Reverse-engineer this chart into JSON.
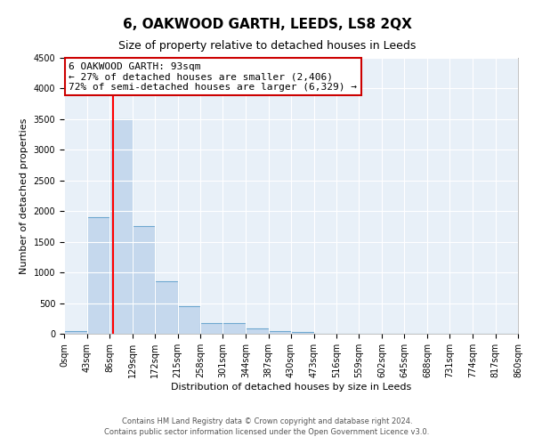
{
  "title": "6, OAKWOOD GARTH, LEEDS, LS8 2QX",
  "subtitle": "Size of property relative to detached houses in Leeds",
  "xlabel": "Distribution of detached houses by size in Leeds",
  "ylabel": "Number of detached properties",
  "bar_values": [
    50,
    1900,
    3500,
    1750,
    860,
    450,
    175,
    175,
    90,
    50,
    30,
    0,
    0,
    0,
    0,
    0,
    0,
    0,
    0,
    0
  ],
  "bin_edges": [
    0,
    43,
    86,
    129,
    172,
    215,
    258,
    301,
    344,
    387,
    430,
    473,
    516,
    559,
    602,
    645,
    688,
    731,
    774,
    817,
    860
  ],
  "tick_labels": [
    "0sqm",
    "43sqm",
    "86sqm",
    "129sqm",
    "172sqm",
    "215sqm",
    "258sqm",
    "301sqm",
    "344sqm",
    "387sqm",
    "430sqm",
    "473sqm",
    "516sqm",
    "559sqm",
    "602sqm",
    "645sqm",
    "688sqm",
    "731sqm",
    "774sqm",
    "817sqm",
    "860sqm"
  ],
  "bar_color": "#c5d8ed",
  "bar_edge_color": "#6fa8d0",
  "red_line_x": 93,
  "ylim": [
    0,
    4500
  ],
  "yticks": [
    0,
    500,
    1000,
    1500,
    2000,
    2500,
    3000,
    3500,
    4000,
    4500
  ],
  "annotation_title": "6 OAKWOOD GARTH: 93sqm",
  "annotation_line1": "← 27% of detached houses are smaller (2,406)",
  "annotation_line2": "72% of semi-detached houses are larger (6,329) →",
  "annotation_box_color": "#ffffff",
  "annotation_box_edge": "#cc0000",
  "footer1": "Contains HM Land Registry data © Crown copyright and database right 2024.",
  "footer2": "Contains public sector information licensed under the Open Government Licence v3.0.",
  "bg_color": "#e8f0f8",
  "grid_color": "#ffffff",
  "fig_bg": "#ffffff",
  "title_fontsize": 11,
  "subtitle_fontsize": 9,
  "axis_label_fontsize": 8,
  "tick_fontsize": 7,
  "annotation_fontsize": 8,
  "footer_fontsize": 6
}
